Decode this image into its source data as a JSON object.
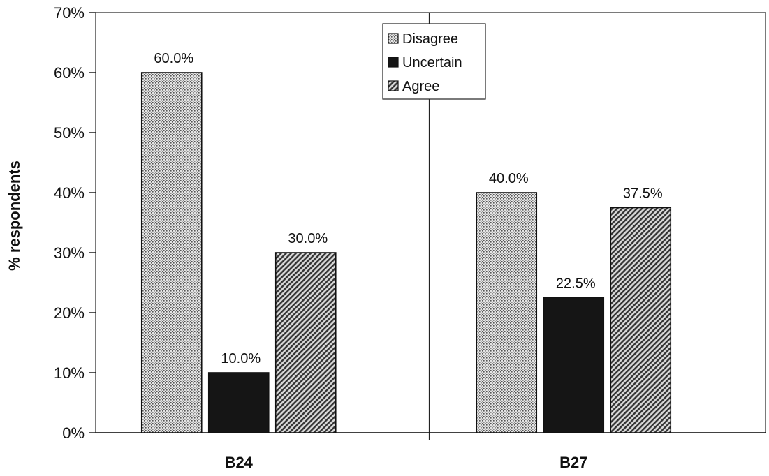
{
  "chart_data": {
    "type": "bar",
    "title": "",
    "xlabel": "",
    "ylabel": "% respondents",
    "ylim": [
      0,
      70
    ],
    "yticks": [
      0,
      10,
      20,
      30,
      40,
      50,
      60,
      70
    ],
    "ytick_labels": [
      "0%",
      "10%",
      "20%",
      "30%",
      "40%",
      "50%",
      "60%",
      "70%"
    ],
    "categories": [
      "B24",
      "B27"
    ],
    "series": [
      {
        "name": "Disagree",
        "values": [
          60.0,
          40.0
        ],
        "labels": [
          "60.0%",
          "40.0%"
        ],
        "pattern": "dots",
        "color": "#bdbdbd"
      },
      {
        "name": "Uncertain",
        "values": [
          10.0,
          22.5
        ],
        "labels": [
          "10.0%",
          "22.5%"
        ],
        "pattern": "solid",
        "color": "#151515"
      },
      {
        "name": "Agree",
        "values": [
          30.0,
          37.5
        ],
        "labels": [
          "30.0%",
          "37.5%"
        ],
        "pattern": "hatch",
        "color": "#555555"
      }
    ],
    "legend_position": "top-center",
    "grid": false
  }
}
